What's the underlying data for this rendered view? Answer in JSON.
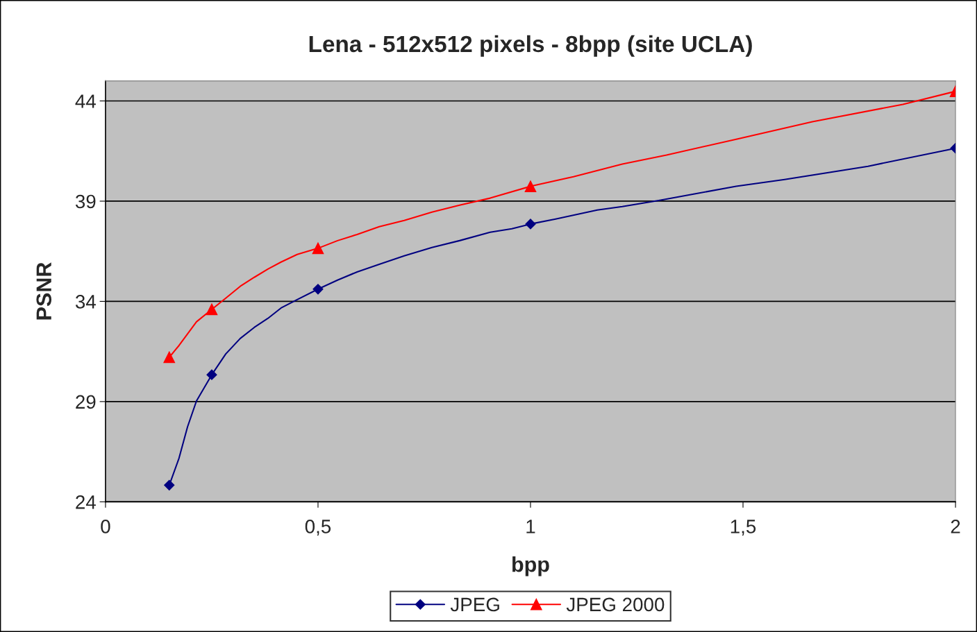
{
  "chart_data": {
    "type": "line",
    "title": "Lena - 512x512 pixels - 8bpp (site UCLA)",
    "xlabel": "bpp",
    "ylabel": "PSNR",
    "series": [
      {
        "name": "JPEG",
        "color": "#000080",
        "x": [
          0.15,
          0.173,
          0.193,
          0.214,
          0.25,
          0.283,
          0.317,
          0.35,
          0.382,
          0.413,
          0.451,
          0.5,
          0.546,
          0.592,
          0.644,
          0.703,
          0.768,
          0.833,
          0.905,
          0.956,
          1,
          1.059,
          1.157,
          1.216,
          1.304,
          1.386,
          1.484,
          1.598,
          1.794,
          2
        ],
        "values": [
          24.83,
          26.18,
          27.74,
          29.03,
          30.34,
          31.38,
          32.15,
          32.7,
          33.15,
          33.67,
          34.09,
          34.61,
          35.06,
          35.47,
          35.85,
          36.27,
          36.69,
          37.03,
          37.45,
          37.62,
          37.86,
          38.11,
          38.56,
          38.73,
          39.04,
          39.36,
          39.74,
          40.08,
          40.74,
          41.64
        ]
      },
      {
        "name": "JPEG 2000",
        "color": "#ff0000",
        "x": [
          0.15,
          0.173,
          0.214,
          0.25,
          0.283,
          0.317,
          0.35,
          0.382,
          0.413,
          0.451,
          0.5,
          0.546,
          0.592,
          0.644,
          0.703,
          0.768,
          0.833,
          0.905,
          1,
          1.101,
          1.216,
          1.32,
          1.484,
          1.663,
          1.876,
          2
        ],
        "values": [
          31.21,
          31.8,
          32.98,
          33.6,
          34.16,
          34.75,
          35.2,
          35.61,
          35.96,
          36.34,
          36.65,
          37.03,
          37.34,
          37.73,
          38.04,
          38.45,
          38.8,
          39.15,
          39.74,
          40.22,
          40.85,
          41.3,
          42.09,
          42.96,
          43.83,
          44.48
        ]
      },
      {
        "type": "scatter",
        "color": "#000080",
        "marker": "diamond",
        "x": [
          0.15,
          0.25,
          0.5,
          1,
          2
        ],
        "values": [
          24.83,
          30.34,
          34.61,
          37.86,
          41.64
        ]
      },
      {
        "type": "scatter",
        "color": "#ff0000",
        "marker": "triangle",
        "x": [
          0.15,
          0.25,
          0.5,
          1,
          2
        ],
        "values": [
          31.21,
          33.6,
          36.65,
          39.74,
          44.48
        ]
      }
    ],
    "xlim": [
      0,
      2
    ],
    "xticks": [
      0,
      {
        "value": 0.5,
        "label": "0,5"
      },
      1,
      {
        "value": 1.5,
        "label": "1,5"
      },
      2
    ],
    "ylim": [
      24,
      45
    ],
    "yticks": [
      24,
      29,
      34,
      39,
      44
    ],
    "grid": "y",
    "legend": "bottom",
    "line_style": "solid"
  }
}
